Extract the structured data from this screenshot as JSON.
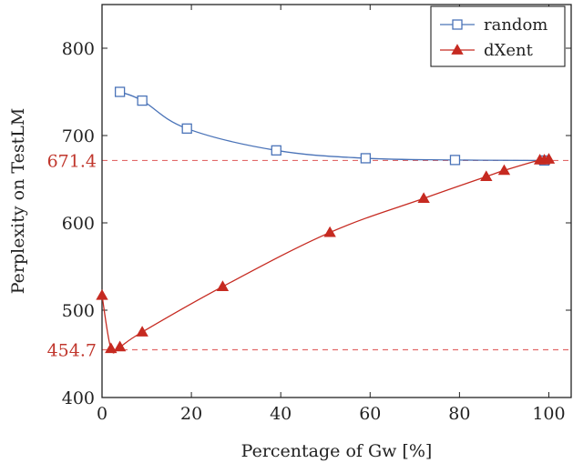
{
  "chart_data": {
    "type": "line",
    "xlabel": "Percentage of Gw [%]",
    "ylabel": "Perplexity on TestLM",
    "xlim": [
      0,
      105
    ],
    "ylim": [
      400,
      850
    ],
    "xticks": [
      0,
      20,
      40,
      60,
      80,
      100
    ],
    "yticks": [
      400,
      500,
      600,
      700,
      800
    ],
    "legend_position": "top-right",
    "series": [
      {
        "name": "random",
        "color": "#4a73b8",
        "marker": "square",
        "x": [
          4,
          9,
          19,
          39,
          59,
          79,
          99
        ],
        "y": [
          750,
          740,
          708,
          683,
          674,
          672,
          671.4
        ]
      },
      {
        "name": "dXent",
        "color": "#c62a21",
        "marker": "triangle",
        "x": [
          0,
          2,
          4,
          9,
          27,
          51,
          72,
          86,
          90,
          98,
          99,
          100
        ],
        "y": [
          517,
          456,
          458,
          475,
          527,
          589,
          628,
          653,
          660,
          672,
          672,
          673
        ]
      }
    ],
    "reference_lines": [
      {
        "y": 671.4,
        "label": "671.4",
        "color": "#e26a6a"
      },
      {
        "y": 454.7,
        "label": "454.7",
        "color": "#e26a6a"
      }
    ]
  }
}
